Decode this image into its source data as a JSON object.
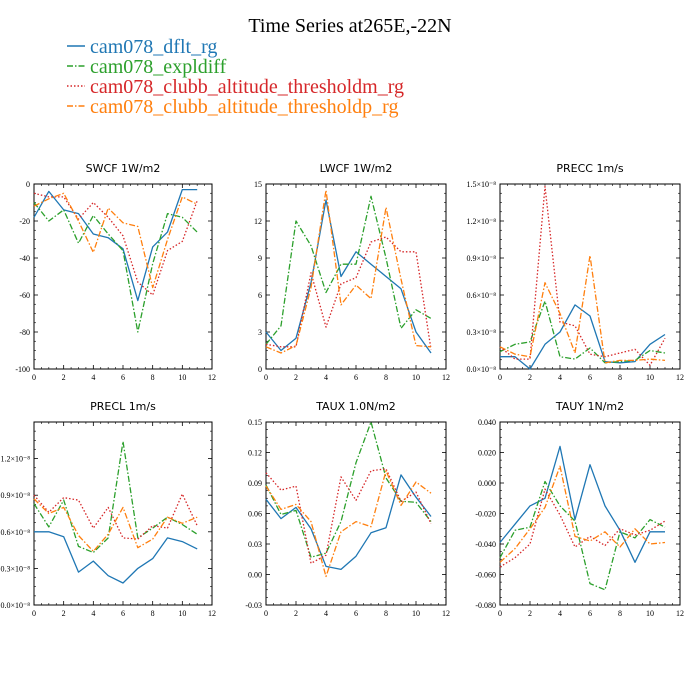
{
  "title": "Time Series at265E,-22N",
  "legend": [
    {
      "label": "cam078_dflt_rg",
      "color": "#1f77b4",
      "dash": "solid"
    },
    {
      "label": "cam078_expldiff",
      "color": "#2ca02c",
      "dash": "dashdot"
    },
    {
      "label": "cam078_clubb_altitude_thresholdm_rg",
      "color": "#d62728",
      "dash": "dotted"
    },
    {
      "label": "cam078_clubb_altitude_thresholdp_rg",
      "color": "#ff7f0e",
      "dash": "dashdot"
    }
  ],
  "chart_data": [
    {
      "type": "line",
      "title": "SWCF   1W/m2",
      "x": [
        0,
        1,
        2,
        3,
        4,
        5,
        6,
        7,
        8,
        9,
        10,
        11
      ],
      "xlim": [
        0,
        12
      ],
      "xticks": [
        "0",
        "2",
        "4",
        "6",
        "8",
        "10",
        "12"
      ],
      "ylim": [
        -100,
        0
      ],
      "yticks": [
        "-100",
        "-80",
        "-60",
        "-40",
        "-20",
        "0"
      ],
      "series": [
        {
          "name": "cam078_dflt_rg",
          "values": [
            -18,
            -4,
            -14,
            -16,
            -27,
            -29,
            -35,
            -63,
            -34,
            -26,
            -3,
            -3
          ]
        },
        {
          "name": "cam078_expldiff",
          "values": [
            -10,
            -20,
            -14,
            -32,
            -17,
            -27,
            -36,
            -80,
            -43,
            -16,
            -18,
            -26
          ]
        },
        {
          "name": "cam078_clubb_altitude_thresholdm_rg",
          "values": [
            -5,
            -7,
            -7,
            -19,
            -10,
            -18,
            -28,
            -53,
            -60,
            -36,
            -31,
            -9
          ]
        },
        {
          "name": "cam078_clubb_altitude_thresholdp_rg",
          "values": [
            -12,
            -8,
            -5,
            -20,
            -37,
            -13,
            -21,
            -23,
            -56,
            -30,
            -7,
            -11
          ]
        }
      ]
    },
    {
      "type": "line",
      "title": "LWCF   1W/m2",
      "x": [
        0,
        1,
        2,
        3,
        4,
        5,
        6,
        7,
        8,
        9,
        10,
        11
      ],
      "xlim": [
        0,
        12
      ],
      "xticks": [
        "0",
        "2",
        "4",
        "6",
        "8",
        "10",
        "12"
      ],
      "ylim": [
        0,
        15
      ],
      "yticks": [
        "0",
        "3",
        "6",
        "9",
        "12",
        "15"
      ],
      "series": [
        {
          "name": "cam078_dflt_rg",
          "values": [
            3,
            1.5,
            2.5,
            7,
            13.7,
            7.5,
            9.5,
            8.5,
            7.5,
            6.5,
            3,
            1.3
          ]
        },
        {
          "name": "cam078_expldiff",
          "values": [
            2,
            3.5,
            12,
            10,
            6.2,
            8.5,
            8.5,
            14,
            9,
            3.3,
            4.8,
            4.1
          ]
        },
        {
          "name": "cam078_clubb_altitude_thresholdm_rg",
          "values": [
            2,
            1.8,
            1.8,
            7.8,
            3.4,
            6.9,
            7.4,
            10.3,
            10.7,
            9.5,
            9.5,
            1.6
          ]
        },
        {
          "name": "cam078_clubb_altitude_thresholdp_rg",
          "values": [
            1.8,
            1.3,
            1.9,
            6.6,
            14.5,
            5.2,
            6.8,
            5.7,
            13.1,
            7.3,
            1.9,
            1.8
          ]
        }
      ]
    },
    {
      "type": "line",
      "title": "PRECC   1m/s",
      "x": [
        0,
        1,
        2,
        3,
        4,
        5,
        6,
        7,
        8,
        9,
        10,
        11
      ],
      "xlim": [
        0,
        12
      ],
      "xticks": [
        "0",
        "2",
        "4",
        "6",
        "8",
        "10",
        "12"
      ],
      "ylim": [
        0,
        1.5
      ],
      "y_scale_label": "×10⁻⁸",
      "yticks": [
        "0.0×10⁻⁸",
        "0.3×10⁻⁸",
        "0.6×10⁻⁸",
        "0.9×10⁻⁸",
        "1.2×10⁻⁸",
        "1.5×10⁻⁸"
      ],
      "series": [
        {
          "name": "cam078_dflt_rg",
          "values": [
            0.1,
            0.1,
            0.0,
            0.2,
            0.3,
            0.52,
            0.43,
            0.06,
            0.05,
            0.06,
            0.2,
            0.28
          ]
        },
        {
          "name": "cam078_expldiff",
          "values": [
            0.14,
            0.2,
            0.22,
            0.55,
            0.1,
            0.08,
            0.17,
            0.05,
            0.06,
            0.07,
            0.15,
            0.13
          ]
        },
        {
          "name": "cam078_clubb_altitude_thresholdm_rg",
          "values": [
            0.18,
            0.08,
            0.08,
            1.48,
            0.38,
            0.35,
            0.12,
            0.1,
            0.13,
            0.16,
            0.03,
            0.25
          ]
        },
        {
          "name": "cam078_clubb_altitude_thresholdp_rg",
          "values": [
            0.18,
            0.12,
            0.1,
            0.7,
            0.45,
            0.13,
            0.92,
            0.05,
            0.07,
            0.07,
            0.08,
            0.07
          ]
        }
      ]
    },
    {
      "type": "line",
      "title": "PRECL   1m/s",
      "x": [
        0,
        1,
        2,
        3,
        4,
        5,
        6,
        7,
        8,
        9,
        10,
        11
      ],
      "xlim": [
        0,
        12
      ],
      "xticks": [
        "0",
        "2",
        "4",
        "6",
        "8",
        "10",
        "12"
      ],
      "ylim": [
        0,
        1.5
      ],
      "y_scale_label": "×10⁻⁸",
      "yticks": [
        "0.0×10⁻⁸",
        "0.3×10⁻⁸",
        "0.6×10⁻⁸",
        "0.9×10⁻⁸",
        "1.2×10⁻⁸"
      ],
      "series": [
        {
          "name": "cam078_dflt_rg",
          "values": [
            0.6,
            0.6,
            0.56,
            0.27,
            0.36,
            0.24,
            0.18,
            0.3,
            0.38,
            0.55,
            0.52,
            0.46
          ]
        },
        {
          "name": "cam078_expldiff",
          "values": [
            0.83,
            0.64,
            0.86,
            0.48,
            0.43,
            0.55,
            1.34,
            0.55,
            0.63,
            0.72,
            0.66,
            0.58
          ]
        },
        {
          "name": "cam078_clubb_altitude_thresholdm_rg",
          "values": [
            0.9,
            0.76,
            0.88,
            0.86,
            0.63,
            0.8,
            0.55,
            0.54,
            0.65,
            0.63,
            0.91,
            0.65
          ]
        },
        {
          "name": "cam078_clubb_altitude_thresholdp_rg",
          "values": [
            0.87,
            0.75,
            0.8,
            0.57,
            0.44,
            0.58,
            0.8,
            0.47,
            0.54,
            0.72,
            0.67,
            0.72
          ]
        }
      ]
    },
    {
      "type": "line",
      "title": "TAUX   1.0N/m2",
      "x": [
        0,
        1,
        2,
        3,
        4,
        5,
        6,
        7,
        8,
        9,
        10,
        11
      ],
      "xlim": [
        0,
        12
      ],
      "xticks": [
        "0",
        "2",
        "4",
        "6",
        "8",
        "10",
        "12"
      ],
      "ylim": [
        -0.03,
        0.15
      ],
      "yticks": [
        "-0.03",
        "0.00",
        "0.03",
        "0.06",
        "0.09",
        "0.12",
        "0.15"
      ],
      "series": [
        {
          "name": "cam078_dflt_rg",
          "values": [
            0.074,
            0.055,
            0.066,
            0.045,
            0.008,
            0.005,
            0.018,
            0.041,
            0.046,
            0.098,
            0.076,
            0.057
          ]
        },
        {
          "name": "cam078_expldiff",
          "values": [
            0.088,
            0.059,
            0.063,
            0.017,
            0.021,
            0.052,
            0.11,
            0.15,
            0.095,
            0.072,
            0.071,
            0.052
          ]
        },
        {
          "name": "cam078_clubb_altitude_thresholdm_rg",
          "values": [
            0.1,
            0.083,
            0.087,
            0.011,
            0.019,
            0.096,
            0.073,
            0.102,
            0.104,
            0.072,
            0.081,
            0.05
          ]
        },
        {
          "name": "cam078_clubb_altitude_thresholdp_rg",
          "values": [
            0.087,
            0.064,
            0.069,
            0.052,
            -0.002,
            0.042,
            0.052,
            0.047,
            0.102,
            0.068,
            0.091,
            0.08
          ]
        }
      ]
    },
    {
      "type": "line",
      "title": "TAUY   1N/m2",
      "x": [
        0,
        1,
        2,
        3,
        4,
        5,
        6,
        7,
        8,
        9,
        10,
        11
      ],
      "xlim": [
        0,
        12
      ],
      "xticks": [
        "0",
        "2",
        "4",
        "6",
        "8",
        "10",
        "12"
      ],
      "ylim": [
        -0.08,
        0.04
      ],
      "yticks": [
        "-0.080",
        "-0.060",
        "-0.040",
        "-0.020",
        "0.000",
        "0.020",
        "0.040"
      ],
      "series": [
        {
          "name": "cam078_dflt_rg",
          "values": [
            -0.039,
            -0.027,
            -0.015,
            -0.01,
            0.024,
            -0.024,
            0.012,
            -0.015,
            -0.031,
            -0.052,
            -0.032,
            -0.032
          ]
        },
        {
          "name": "cam078_expldiff",
          "values": [
            -0.049,
            -0.031,
            -0.029,
            0.001,
            -0.015,
            -0.025,
            -0.066,
            -0.07,
            -0.032,
            -0.036,
            -0.024,
            -0.029
          ]
        },
        {
          "name": "cam078_clubb_altitude_thresholdm_rg",
          "values": [
            -0.055,
            -0.049,
            -0.04,
            -0.004,
            -0.021,
            -0.042,
            -0.035,
            -0.041,
            -0.03,
            -0.034,
            -0.031,
            -0.025
          ]
        },
        {
          "name": "cam078_clubb_altitude_thresholdp_rg",
          "values": [
            -0.052,
            -0.043,
            -0.03,
            -0.016,
            0.011,
            -0.035,
            -0.038,
            -0.032,
            -0.042,
            -0.03,
            -0.04,
            -0.039
          ]
        }
      ]
    }
  ]
}
